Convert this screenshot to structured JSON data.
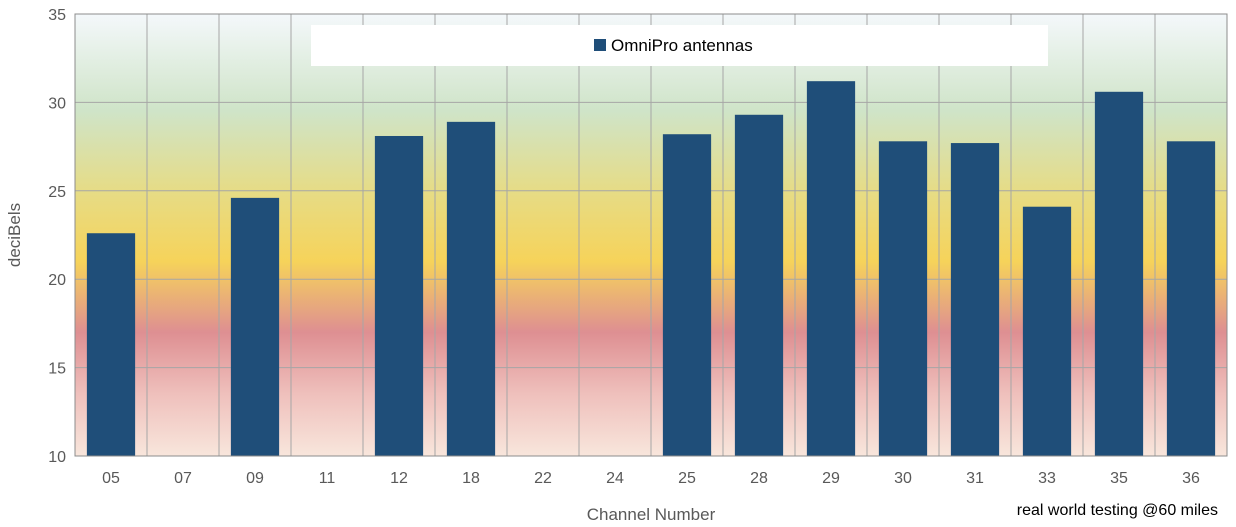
{
  "chart_data": {
    "type": "bar",
    "title": "",
    "xlabel": "Channel Number",
    "ylabel": "deciBels",
    "ylim": [
      10,
      35
    ],
    "yticks": [
      10,
      15,
      20,
      25,
      30,
      35
    ],
    "grid": true,
    "legend_position": "top-center",
    "annotation": "real world testing @60 miles",
    "categories": [
      "05",
      "07",
      "09",
      "11",
      "12",
      "18",
      "22",
      "24",
      "25",
      "28",
      "29",
      "30",
      "31",
      "33",
      "35",
      "36"
    ],
    "series": [
      {
        "name": "OmniPro antennas",
        "color": "#1f4e79",
        "values": [
          22.6,
          null,
          24.6,
          null,
          28.1,
          28.9,
          null,
          null,
          28.2,
          29.3,
          31.2,
          27.8,
          27.7,
          24.1,
          30.6,
          27.8
        ]
      }
    ]
  }
}
